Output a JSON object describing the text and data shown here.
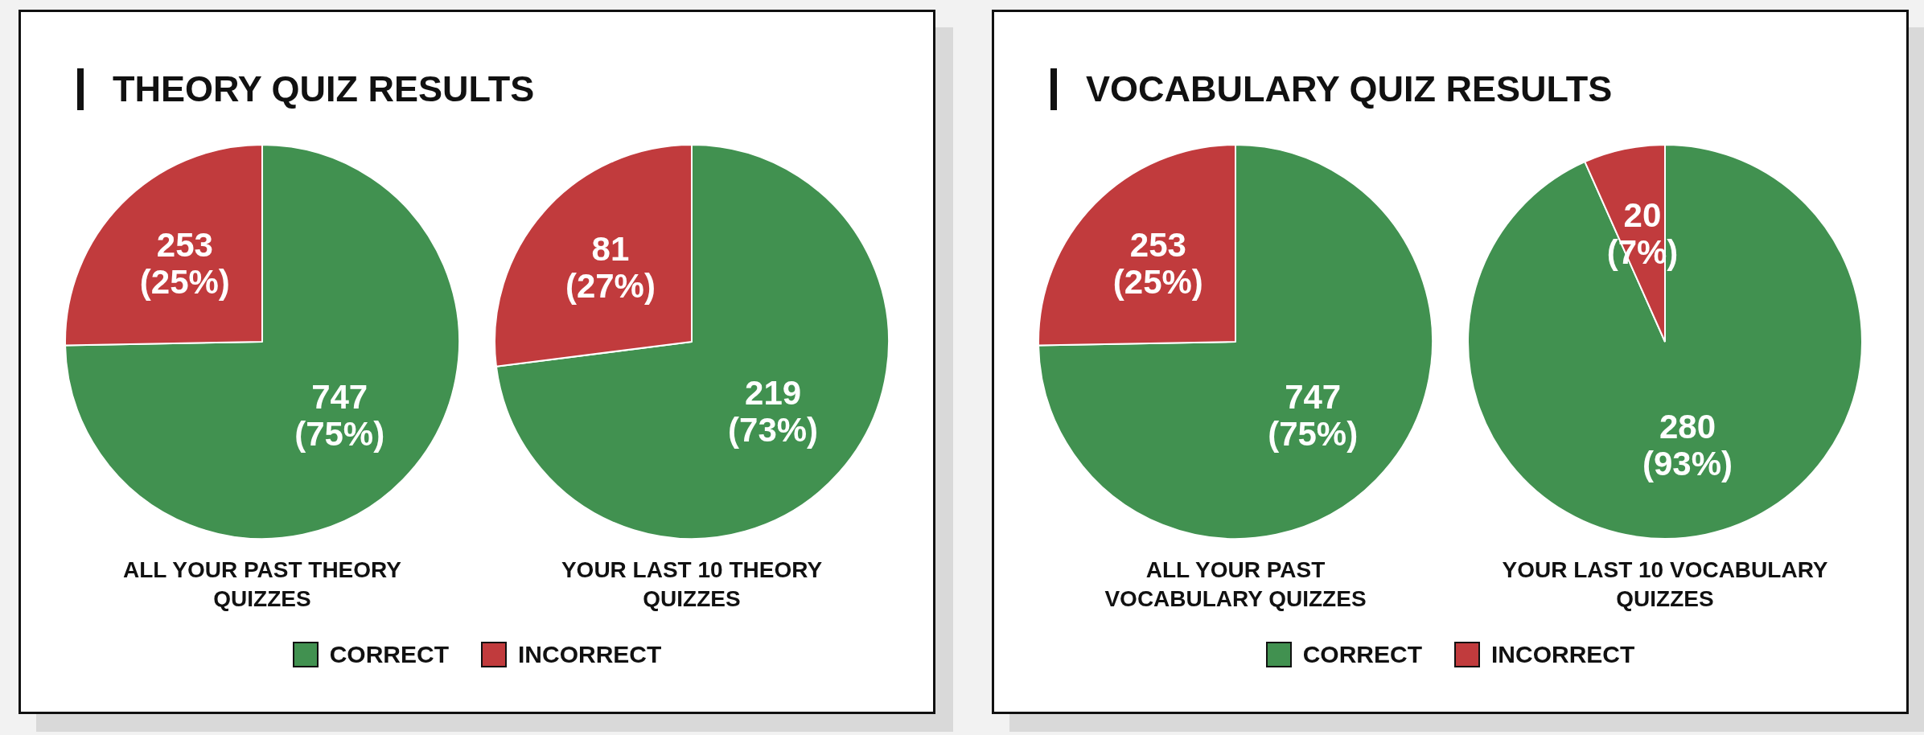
{
  "chart_data": [
    {
      "type": "pie",
      "title": "THEORY QUIZ RESULTS",
      "categories": [
        "CORRECT",
        "INCORRECT"
      ],
      "colors": [
        "#419150",
        "#c13b3d"
      ],
      "legend": "bottom",
      "series": [
        {
          "name": "ALL YOUR PAST THEORY QUIZZES",
          "values": [
            747,
            253
          ],
          "value_labels": [
            "747 (75%)",
            "253 (25%)"
          ]
        },
        {
          "name": "YOUR LAST 10 THEORY QUIZZES",
          "values": [
            219,
            81
          ],
          "value_labels": [
            "219 (73%)",
            "81 (27%)"
          ]
        }
      ]
    },
    {
      "type": "pie",
      "title": "VOCABULARY QUIZ RESULTS",
      "categories": [
        "CORRECT",
        "INCORRECT"
      ],
      "colors": [
        "#419150",
        "#c13b3d"
      ],
      "legend": "bottom",
      "series": [
        {
          "name": "ALL YOUR PAST VOCABULARY QUIZZES",
          "values": [
            747,
            253
          ],
          "value_labels": [
            "747 (75%)",
            "253 (25%)"
          ]
        },
        {
          "name": "YOUR LAST 10 VOCABULARY QUIZZES",
          "values": [
            280,
            20
          ],
          "value_labels": [
            "280 (93%)",
            "20 (7%)"
          ]
        }
      ]
    }
  ]
}
